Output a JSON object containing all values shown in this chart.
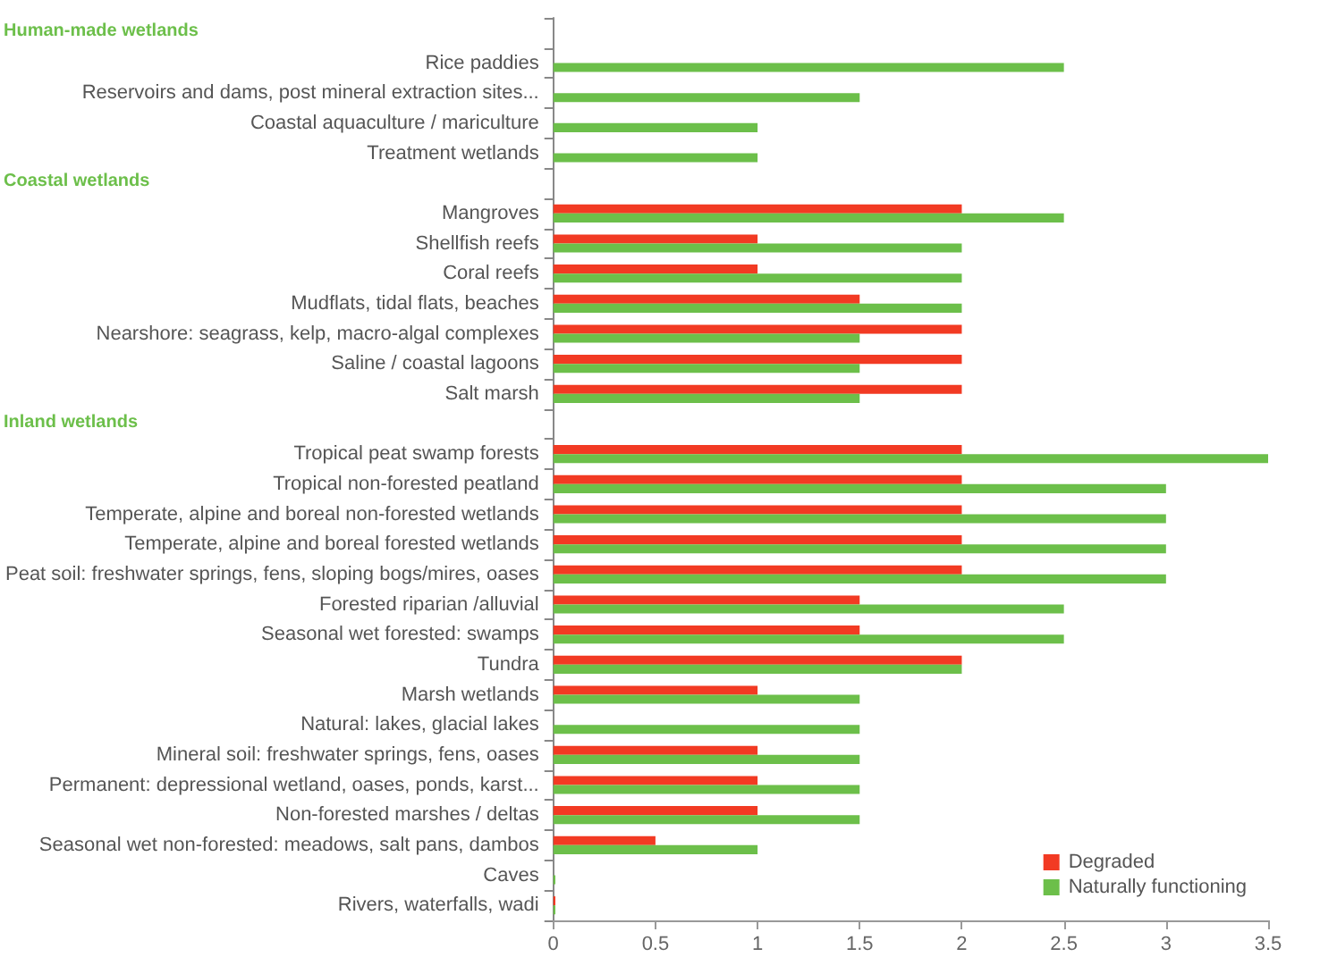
{
  "chart_data": {
    "type": "bar",
    "orientation": "horizontal",
    "annotations": [
      "Human-made wetlands",
      "Coastal wetlands",
      "Inland wetlands"
    ],
    "categories": [
      null,
      "Rice paddies",
      "Reservoirs and dams, post mineral extraction sites...",
      "Coastal aquaculture / mariculture",
      "Treatment wetlands",
      null,
      "Mangroves",
      "Shellfish reefs",
      "Coral reefs",
      "Mudflats, tidal flats, beaches",
      "Nearshore: seagrass, kelp, macro-algal complexes",
      "Saline / coastal lagoons",
      "Salt marsh",
      null,
      "Tropical peat swamp forests",
      "Tropical non-forested peatland",
      "Temperate, alpine and boreal non-forested wetlands",
      "Temperate, alpine and boreal forested wetlands",
      "Peat soil: freshwater springs, fens, sloping bogs/mires, oases",
      "Forested riparian /alluvial",
      "Seasonal wet forested: swamps",
      "Tundra",
      "Marsh wetlands",
      "Natural: lakes, glacial lakes",
      "Mineral soil: freshwater springs, fens, oases",
      "Permanent: depressional wetland, oases, ponds, karst...",
      "Non-forested marshes / deltas",
      "Seasonal wet non-forested: meadows, salt pans, dambos",
      "Caves",
      "Rivers, waterfalls, wadi"
    ],
    "series": [
      {
        "name": "Degraded",
        "color": "#f23a23",
        "values": [
          null,
          null,
          null,
          null,
          null,
          null,
          2,
          1,
          1,
          1.5,
          2,
          2,
          2,
          null,
          2,
          2,
          2,
          2,
          2,
          1.5,
          1.5,
          2,
          1,
          null,
          1,
          1,
          1,
          0.5,
          null,
          0.01
        ]
      },
      {
        "name": "Naturally functioning",
        "color": "#6cbf4a",
        "values": [
          null,
          2.5,
          1.5,
          1,
          1,
          null,
          2.5,
          2,
          2,
          2,
          1.5,
          1.5,
          1.5,
          null,
          3.5,
          3,
          3,
          3,
          3,
          2.5,
          2.5,
          2,
          1.5,
          1.5,
          1.5,
          1.5,
          1.5,
          1,
          0.01,
          0.01
        ]
      }
    ],
    "xlim": [
      0,
      3.5
    ],
    "xticks": [
      0,
      0.5,
      1,
      1.5,
      2,
      2.5,
      3,
      3.5
    ],
    "grid": false,
    "legend": "bottom right"
  }
}
